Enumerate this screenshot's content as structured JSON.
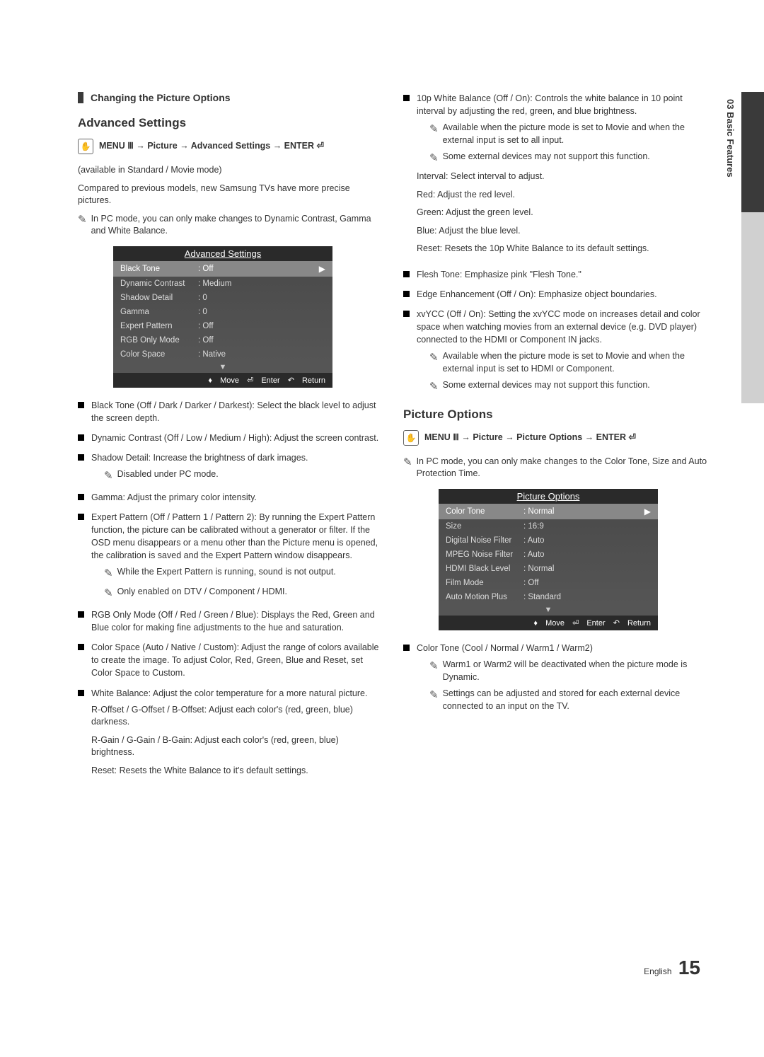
{
  "chapter": "03  Basic Features",
  "sectionBar": "Changing the Picture Options",
  "advTitle": "Advanced Settings",
  "menuPath1": "MENU Ⅲ → Picture → Advanced Settings → ENTER ⏎",
  "availText": "(available in Standard / Movie mode)",
  "compareText": "Compared to previous models, new Samsung TVs have more precise pictures.",
  "pcNote1": "In PC mode, you can only make changes to Dynamic Contrast, Gamma and White Balance.",
  "osd1": {
    "title": "Advanced Settings",
    "rows": [
      {
        "label": "Black Tone",
        "value": ": Off",
        "sel": true
      },
      {
        "label": "Dynamic Contrast",
        "value": ": Medium"
      },
      {
        "label": "Shadow Detail",
        "value": ": 0"
      },
      {
        "label": "Gamma",
        "value": ": 0"
      },
      {
        "label": "Expert Pattern",
        "value": ": Off"
      },
      {
        "label": "RGB Only Mode",
        "value": ": Off"
      },
      {
        "label": "Color Space",
        "value": ": Native"
      }
    ],
    "footMove": "Move",
    "footEnter": "Enter",
    "footReturn": "Return"
  },
  "leftItems": {
    "blackTone": "Black Tone (Off / Dark / Darker / Darkest): Select the black level to adjust the screen depth.",
    "dynContrast": "Dynamic Contrast (Off / Low / Medium / High): Adjust the screen contrast.",
    "shadow": "Shadow Detail: Increase the brightness of dark images.",
    "shadowNote": "Disabled under PC mode.",
    "gamma": "Gamma: Adjust the primary color intensity.",
    "expert": "Expert Pattern (Off / Pattern 1 / Pattern 2): By running the Expert Pattern function, the picture can be calibrated without a generator or filter. If the OSD menu disappears or a menu other than the Picture menu is opened, the calibration is saved and the Expert Pattern window disappears.",
    "expertNote1": "While the Expert Pattern is running, sound is not output.",
    "expertNote2": "Only enabled on DTV / Component / HDMI.",
    "rgb": "RGB Only Mode (Off / Red / Green / Blue): Displays the Red, Green and Blue color for making fine adjustments to the hue and saturation.",
    "colorSpace": "Color Space (Auto / Native / Custom): Adjust the range of colors available to create the image. To adjust Color, Red, Green, Blue and Reset, set Color Space to Custom.",
    "whiteBal": "White Balance: Adjust the color temperature for a more natural picture.",
    "wbOffset": "R-Offset / G-Offset / B-Offset: Adjust each color's (red, green, blue) darkness.",
    "wbGain": "R-Gain / G-Gain / B-Gain: Adjust each color's (red, green, blue) brightness.",
    "wbReset": "Reset: Resets the White Balance to it's default settings."
  },
  "rightItems": {
    "tenP": "10p White Balance (Off / On): Controls the white balance in 10 point interval by adjusting the red, green, and blue brightness.",
    "tenPNote1": "Available when the picture mode is set to Movie and when the external input is set to all input.",
    "tenPNote2": "Some external devices may not support this function.",
    "interval": "Interval: Select interval to adjust.",
    "red": "Red: Adjust the red level.",
    "green": "Green: Adjust the green level.",
    "blue": "Blue: Adjust the blue level.",
    "reset": "Reset: Resets the 10p White Balance to its default settings.",
    "flesh": "Flesh Tone: Emphasize pink \"Flesh Tone.\"",
    "edge": "Edge Enhancement (Off / On): Emphasize object boundaries.",
    "xvycc": "xvYCC (Off / On): Setting the xvYCC mode on increases detail and color space when watching movies from an external device (e.g. DVD player) connected to the HDMI or Component IN jacks.",
    "xvyccNote1": "Available when the picture mode is set to Movie and when the external input is set to HDMI or Component.",
    "xvyccNote2": "Some external devices may not support this function."
  },
  "picOptTitle": "Picture Options",
  "menuPath2": "MENU Ⅲ → Picture → Picture Options → ENTER ⏎",
  "pcNote2": "In PC mode, you can only make changes to the Color Tone, Size and Auto Protection Time.",
  "osd2": {
    "title": "Picture Options",
    "rows": [
      {
        "label": "Color Tone",
        "value": ": Normal",
        "sel": true
      },
      {
        "label": "Size",
        "value": ": 16:9"
      },
      {
        "label": "Digital Noise Filter",
        "value": ": Auto"
      },
      {
        "label": "MPEG Noise Filter",
        "value": ": Auto"
      },
      {
        "label": "HDMI Black Level",
        "value": ": Normal"
      },
      {
        "label": "Film Mode",
        "value": ": Off"
      },
      {
        "label": "Auto Motion Plus",
        "value": ": Standard"
      }
    ],
    "footMove": "Move",
    "footEnter": "Enter",
    "footReturn": "Return"
  },
  "colorTone": "Color Tone (Cool / Normal / Warm1 / Warm2)",
  "colorToneNote1": "Warm1 or Warm2 will be deactivated when the picture mode is Dynamic.",
  "colorToneNote2": "Settings can be adjusted and stored for each external device connected to an input on the TV.",
  "footerLang": "English",
  "footerPage": "15"
}
